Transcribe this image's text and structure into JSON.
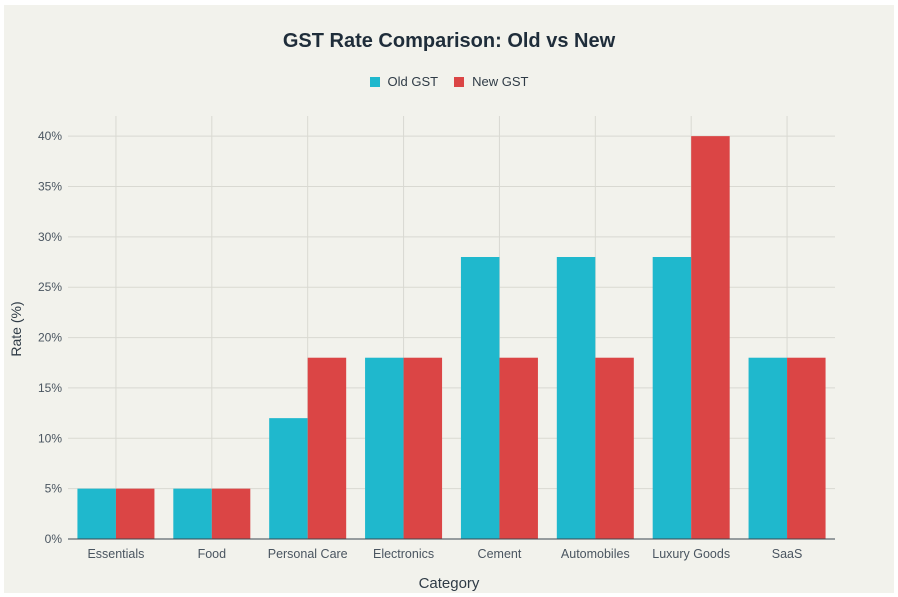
{
  "chart_data": {
    "type": "bar",
    "title": "GST Rate Comparison: Old vs New",
    "xlabel": "Category",
    "ylabel": "Rate (%)",
    "ylim": [
      0,
      42
    ],
    "yticks": [
      "0%",
      "5%",
      "10%",
      "15%",
      "20%",
      "25%",
      "30%",
      "35%",
      "40%"
    ],
    "categories": [
      "Essentials",
      "Food",
      "Personal Care",
      "Electronics",
      "Cement",
      "Automobiles",
      "Luxury Goods",
      "SaaS"
    ],
    "series": [
      {
        "name": "Old GST",
        "color": "#1fb8cd",
        "values": [
          5,
          5,
          12,
          18,
          28,
          28,
          28,
          18
        ]
      },
      {
        "name": "New GST",
        "color": "#db4545",
        "values": [
          5,
          5,
          18,
          18,
          18,
          18,
          40,
          18
        ]
      }
    ],
    "grid": true,
    "legend_position": "top-center"
  }
}
